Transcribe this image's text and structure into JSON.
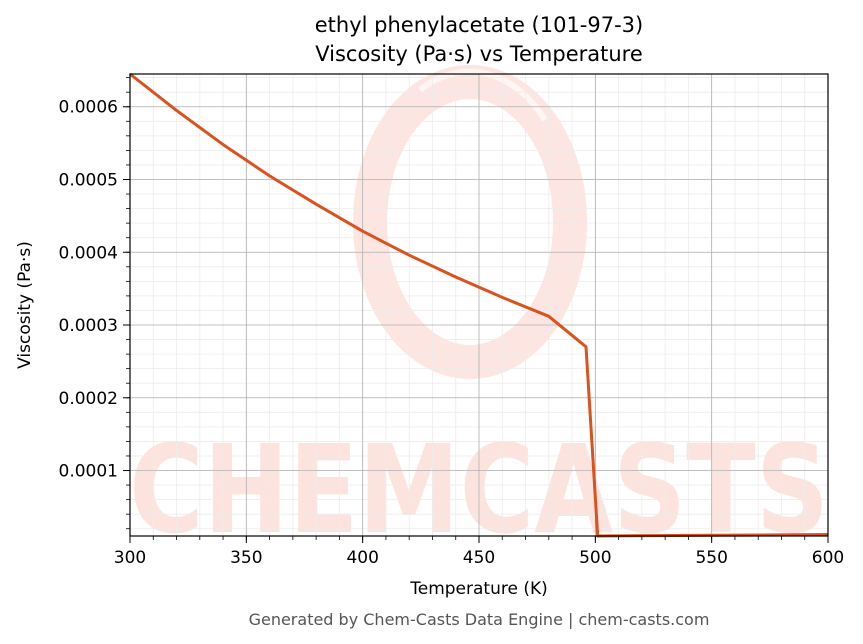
{
  "chart_data": {
    "type": "line",
    "title": "ethyl phenylacetate (101-97-3)",
    "subtitle": "Viscosity (Pa·s) vs Temperature",
    "xlabel": "Temperature (K)",
    "ylabel": "Viscosity (Pa·s)",
    "xlim": [
      300,
      600
    ],
    "ylim": [
      1e-05,
      0.000645
    ],
    "xticks": [
      300,
      350,
      400,
      450,
      500,
      550,
      600
    ],
    "xtick_labels": [
      "300",
      "350",
      "400",
      "450",
      "500",
      "550",
      "600"
    ],
    "yticks": [
      0.0001,
      0.0002,
      0.0003,
      0.0004,
      0.0005,
      0.0006
    ],
    "ytick_labels": [
      "0.0001",
      "0.0002",
      "0.0003",
      "0.0004",
      "0.0005",
      "0.0006"
    ],
    "grid": true,
    "line_color": "#d9531e",
    "series": [
      {
        "x": [
          300,
          320,
          340,
          360,
          380,
          400,
          420,
          440,
          460,
          480,
          496,
          501,
          550,
          600
        ],
        "y": [
          0.000645,
          0.000595,
          0.000548,
          0.000505,
          0.000466,
          0.000429,
          0.000396,
          0.000366,
          0.000338,
          0.000312,
          0.00027,
          1e-05,
          1.1e-05,
          1.2e-05
        ]
      }
    ]
  },
  "watermark": {
    "text": "CHEMCASTS"
  },
  "footer": "Generated by Chem-Casts Data Engine | chem-casts.com"
}
